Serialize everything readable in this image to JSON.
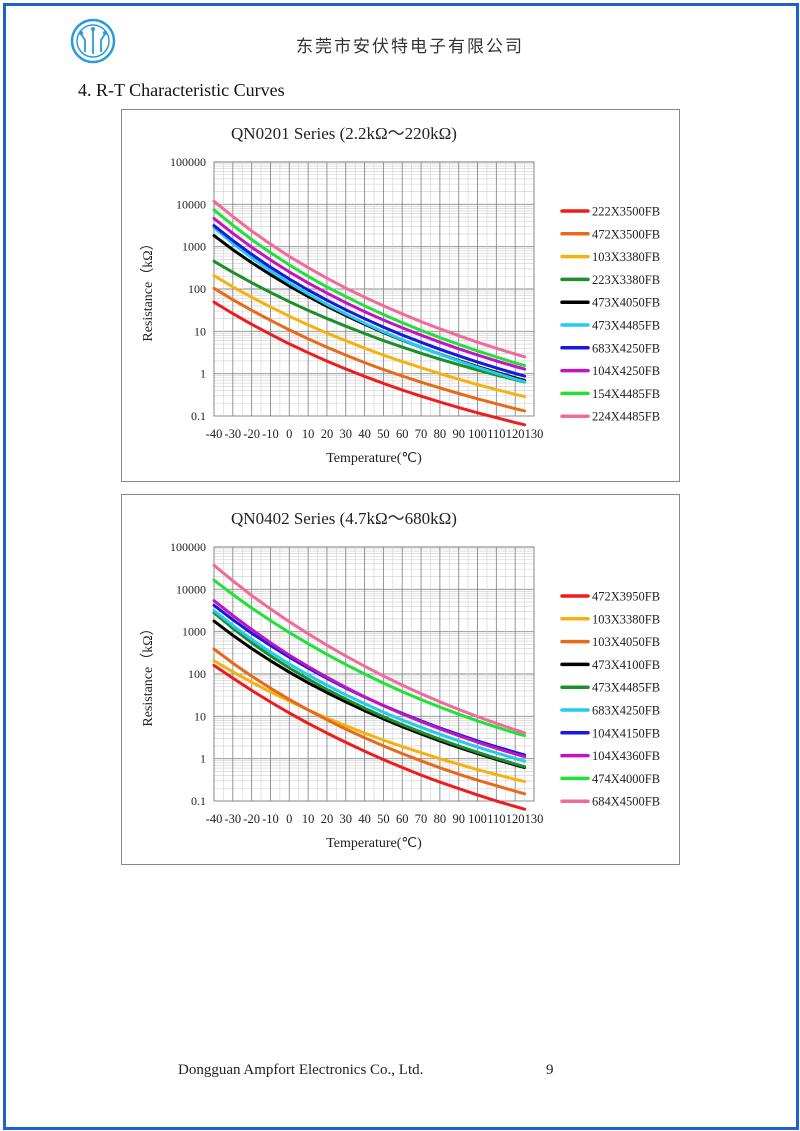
{
  "header": {
    "company": "东莞市安伏特电子有限公司"
  },
  "section_title": "4. R-T Characteristic Curves",
  "footer": {
    "company": "Dongguan Ampfort Electronics Co., Ltd.",
    "page": "9"
  },
  "colors": {
    "border": "#1f5fd0"
  },
  "chart_data": [
    {
      "type": "line",
      "title": "QN0201 Series (2.2kΩ～220kΩ)",
      "xlabel": "Temperature(℃)",
      "ylabel": "Resistance（kΩ）",
      "y_scale": "log",
      "xlim": [
        -40,
        130
      ],
      "ylim": [
        0.1,
        100000
      ],
      "x_ticks": [
        "-40",
        "-30",
        "-20",
        "-10",
        "0",
        "10",
        "20",
        "30",
        "40",
        "50",
        "60",
        "70",
        "80",
        "90",
        "100",
        "110",
        "120",
        "130"
      ],
      "y_ticks": [
        "100000",
        "10000",
        "1000",
        "100",
        "10",
        "1",
        "0.1"
      ],
      "grid": true,
      "legend_position": "right",
      "x": [
        -40,
        -30,
        -20,
        -10,
        0,
        10,
        20,
        30,
        40,
        50,
        60,
        70,
        80,
        90,
        100,
        110,
        120,
        125
      ],
      "series": [
        {
          "name": "222X3500FB",
          "color": "#ee1c1c",
          "values": [
            49,
            26.3,
            14.7,
            8.5,
            5.05,
            3.12,
            1.98,
            1.29,
            0.86,
            0.59,
            0.412,
            0.294,
            0.214,
            0.158,
            0.119,
            0.091,
            0.07,
            0.062
          ]
        },
        {
          "name": "472X3500FB",
          "color": "#e66a1a",
          "values": [
            104,
            56,
            31.4,
            18.2,
            10.8,
            6.65,
            4.22,
            2.75,
            1.83,
            1.25,
            0.88,
            0.63,
            0.46,
            0.34,
            0.255,
            0.194,
            0.149,
            0.132
          ]
        },
        {
          "name": "103X3380FB",
          "color": "#f5b20f",
          "values": [
            206,
            113,
            64,
            37.7,
            22.8,
            14.2,
            9.1,
            6.0,
            4.0,
            2.75,
            1.93,
            1.38,
            1.0,
            0.74,
            0.55,
            0.42,
            0.325,
            0.288
          ]
        },
        {
          "name": "223X3380FB",
          "color": "#1b8f2a",
          "values": [
            452,
            248,
            141,
            83,
            50,
            31.3,
            20.1,
            13.2,
            8.9,
            6.05,
            4.24,
            3.03,
            2.2,
            1.63,
            1.22,
            0.93,
            0.72,
            0.635
          ]
        },
        {
          "name": "473X4050FB",
          "color": "#000000",
          "values": [
            1830,
            850,
            420,
            218,
            118,
            67,
            39,
            23.6,
            14.7,
            9.4,
            6.2,
            4.2,
            2.9,
            2.05,
            1.48,
            1.08,
            0.8,
            0.695
          ]
        },
        {
          "name": "473X4485FB",
          "color": "#22ccee",
          "values": [
            2800,
            1200,
            550,
            268,
            139,
            76,
            43,
            25.5,
            15.6,
            9.8,
            6.35,
            4.22,
            2.87,
            1.99,
            1.41,
            1.02,
            0.75,
            0.645
          ]
        },
        {
          "name": "683X4250FB",
          "color": "#1818e0",
          "values": [
            3150,
            1400,
            660,
            328,
            172,
            94.5,
            54.3,
            32.3,
            19.9,
            12.6,
            8.2,
            5.5,
            3.77,
            2.64,
            1.88,
            1.37,
            1.01,
            0.875
          ]
        },
        {
          "name": "104X4250FB",
          "color": "#c015c0",
          "values": [
            4640,
            2070,
            970,
            483,
            253,
            139,
            80,
            47.5,
            29.3,
            18.5,
            12.1,
            8.1,
            5.54,
            3.87,
            2.76,
            2.0,
            1.48,
            1.285
          ]
        },
        {
          "name": "154X4485FB",
          "color": "#22e03a",
          "values": [
            7400,
            3220,
            1480,
            720,
            370,
            200,
            112,
            66,
            40,
            25,
            16,
            10.5,
            7.1,
            4.9,
            3.45,
            2.47,
            1.8,
            1.55
          ]
        },
        {
          "name": "224X4485FB",
          "color": "#f06a9a",
          "values": [
            11800,
            5160,
            2360,
            1150,
            590,
            320,
            180,
            105,
            64,
            40,
            25.8,
            17,
            11.5,
            7.9,
            5.55,
            3.97,
            2.9,
            2.5
          ]
        }
      ]
    },
    {
      "type": "line",
      "title": "QN0402 Series (4.7kΩ～680kΩ)",
      "xlabel": "Temperature(℃)",
      "ylabel": "Resistance（kΩ）",
      "y_scale": "log",
      "xlim": [
        -40,
        130
      ],
      "ylim": [
        0.1,
        100000
      ],
      "x_ticks": [
        "-40",
        "-30",
        "-20",
        "-10",
        "0",
        "10",
        "20",
        "30",
        "40",
        "50",
        "60",
        "70",
        "80",
        "90",
        "100",
        "110",
        "120",
        "130"
      ],
      "y_ticks": [
        "100000",
        "10000",
        "1000",
        "100",
        "10",
        "1",
        "0.1"
      ],
      "grid": true,
      "legend_position": "right",
      "x": [
        -40,
        -30,
        -20,
        -10,
        0,
        10,
        20,
        30,
        40,
        50,
        60,
        70,
        80,
        90,
        100,
        110,
        120,
        125
      ],
      "series": [
        {
          "name": "472X3950FB",
          "color": "#ee1c1c",
          "values": [
            160,
            80,
            41,
            21.8,
            12,
            6.85,
            4.02,
            2.42,
            1.5,
            0.95,
            0.62,
            0.41,
            0.28,
            0.196,
            0.139,
            0.1,
            0.074,
            0.064
          ]
        },
        {
          "name": "103X3380FB",
          "color": "#f5b20f",
          "values": [
            206,
            113,
            64,
            37.7,
            22.8,
            14.2,
            9.1,
            6.0,
            4.0,
            2.75,
            1.93,
            1.38,
            1.0,
            0.74,
            0.55,
            0.42,
            0.325,
            0.288
          ]
        },
        {
          "name": "103X4050FB",
          "color": "#e66a1a",
          "values": [
            390,
            181,
            89,
            46.3,
            25.1,
            14.2,
            8.3,
            5.0,
            3.13,
            2.0,
            1.32,
            0.89,
            0.61,
            0.43,
            0.31,
            0.23,
            0.17,
            0.148
          ]
        },
        {
          "name": "473X4100FB",
          "color": "#000000",
          "values": [
            1780,
            820,
            400,
            205,
            110,
            62,
            36.3,
            21.9,
            13.6,
            8.7,
            5.7,
            3.82,
            2.62,
            1.84,
            1.32,
            0.96,
            0.71,
            0.62
          ]
        },
        {
          "name": "473X4485FB",
          "color": "#1b8f2a",
          "values": [
            2800,
            1200,
            550,
            268,
            139,
            76,
            43,
            25.5,
            15.6,
            9.8,
            6.35,
            4.22,
            2.87,
            1.99,
            1.41,
            1.02,
            0.75,
            0.645
          ]
        },
        {
          "name": "683X4250FB",
          "color": "#22ccee",
          "values": [
            3150,
            1400,
            660,
            328,
            172,
            94.5,
            54.3,
            32.3,
            19.9,
            12.6,
            8.2,
            5.5,
            3.77,
            2.64,
            1.88,
            1.37,
            1.01,
            0.875
          ]
        },
        {
          "name": "104X4150FB",
          "color": "#1818e0",
          "values": [
            4200,
            1920,
            920,
            470,
            250,
            138,
            79,
            46.7,
            28.6,
            18,
            11.7,
            7.8,
            5.3,
            3.7,
            2.63,
            1.91,
            1.41,
            1.22
          ]
        },
        {
          "name": "104X4360FB",
          "color": "#c015c0",
          "values": [
            5400,
            2420,
            1130,
            550,
            280,
            150,
            84,
            48.5,
            29,
            17.9,
            11.4,
            7.5,
            5.05,
            3.48,
            2.45,
            1.76,
            1.29,
            1.11
          ]
        },
        {
          "name": "474X4000FB",
          "color": "#22e03a",
          "values": [
            16400,
            7540,
            3630,
            1830,
            955,
            520,
            290,
            168,
            100,
            61,
            38.4,
            24.8,
            16.5,
            11.2,
            7.8,
            5.57,
            4.05,
            3.48
          ]
        },
        {
          "name": "684X4500FB",
          "color": "#f06a9a",
          "values": [
            37000,
            15900,
            7200,
            3450,
            1720,
            895,
            480,
            266,
            153,
            90.2,
            54.8,
            34.3,
            22.1,
            14.6,
            9.85,
            6.8,
            4.8,
            4.07
          ]
        }
      ]
    }
  ]
}
